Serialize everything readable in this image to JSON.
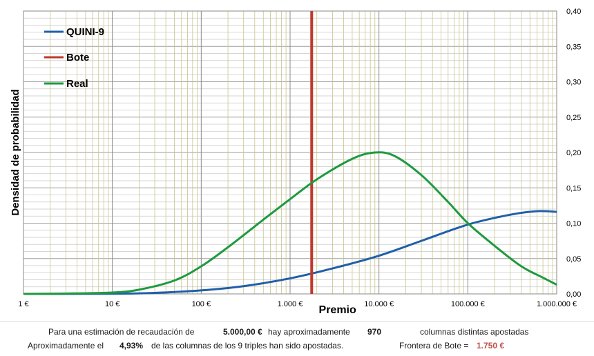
{
  "chart_data": {
    "type": "line",
    "xlabel": "Premio",
    "ylabel": "Densidad de probabilidad",
    "x_scale": "log",
    "xlim": [
      1,
      1000000
    ],
    "ylim": [
      0,
      0.4
    ],
    "y_axis_side": "right",
    "grid": true,
    "legend_position": "top-left",
    "x_ticks": [
      "1 €",
      "10 €",
      "100 €",
      "1.000 €",
      "10.000 €",
      "100.000 €",
      "1.000.000 €"
    ],
    "y_ticks": [
      "0,00",
      "0,05",
      "0,10",
      "0,15",
      "0,20",
      "0,25",
      "0,30",
      "0,35",
      "0,40"
    ],
    "series": [
      {
        "name": "QUINI-9",
        "color": "#1f5fa8",
        "x": [
          1,
          10,
          30,
          100,
          300,
          1000,
          3000,
          10000,
          30000,
          100000,
          300000,
          600000,
          1000000
        ],
        "y": [
          0.0,
          0.0002,
          0.0015,
          0.005,
          0.011,
          0.022,
          0.036,
          0.054,
          0.075,
          0.098,
          0.112,
          0.117,
          0.116
        ]
      },
      {
        "name": "Bote",
        "color": "#c0392b",
        "x": [
          1750,
          1750
        ],
        "y": [
          0.0,
          0.4
        ]
      },
      {
        "name": "Real",
        "color": "#1e9a3e",
        "x": [
          1,
          3,
          10,
          20,
          50,
          100,
          200,
          500,
          1000,
          2000,
          5000,
          9000,
          15000,
          30000,
          60000,
          100000,
          200000,
          400000,
          700000,
          1000000
        ],
        "y": [
          0.0,
          0.0005,
          0.002,
          0.006,
          0.019,
          0.039,
          0.066,
          0.105,
          0.134,
          0.162,
          0.191,
          0.2,
          0.195,
          0.168,
          0.13,
          0.1,
          0.068,
          0.039,
          0.023,
          0.013
        ]
      }
    ]
  },
  "summary": {
    "line1_prefix": "Para  una estimación de recaudación de",
    "recaudacion": "5.000,00 €",
    "line1_mid": "hay aproximadamente",
    "columnas": "970",
    "line1_suffix": "columnas distintas apostadas",
    "line2_prefix": "Aproximadamente el",
    "porcentaje": "4,93%",
    "line2_mid": "de las columnas de los 9 triples han sido apostadas.",
    "frontera_label": "Frontera de Bote =",
    "frontera_value": "1.750 €"
  }
}
